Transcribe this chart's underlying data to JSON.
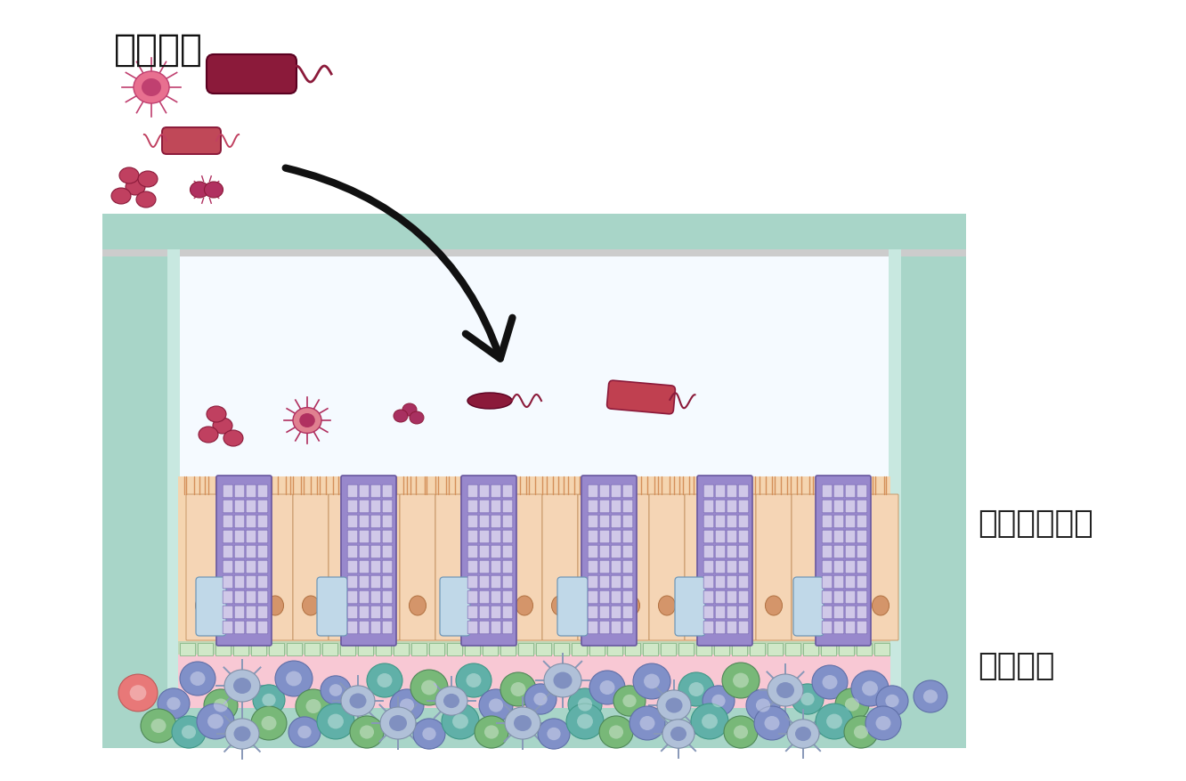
{
  "bg_color": "#ffffff",
  "label_bacteria": "박테리아",
  "label_epithelial": "비강상피세포",
  "label_immune": "면역세포",
  "well_outer_color": "#a8d5c8",
  "well_inner_color": "#c8e8e0",
  "epithelial_bg": "#f5d5b0",
  "immune_bg": "#f8c8d4",
  "arrow_color": "#111111",
  "bacteria_dark": "#8b1a3a",
  "bacteria_med": "#c04060",
  "bacteria_light": "#e06080",
  "immune_blue": "#8090c8",
  "immune_green": "#78b878",
  "immune_teal": "#60b0a8",
  "immune_dendritic": "#a8b8d8",
  "immune_pink": "#e87878"
}
